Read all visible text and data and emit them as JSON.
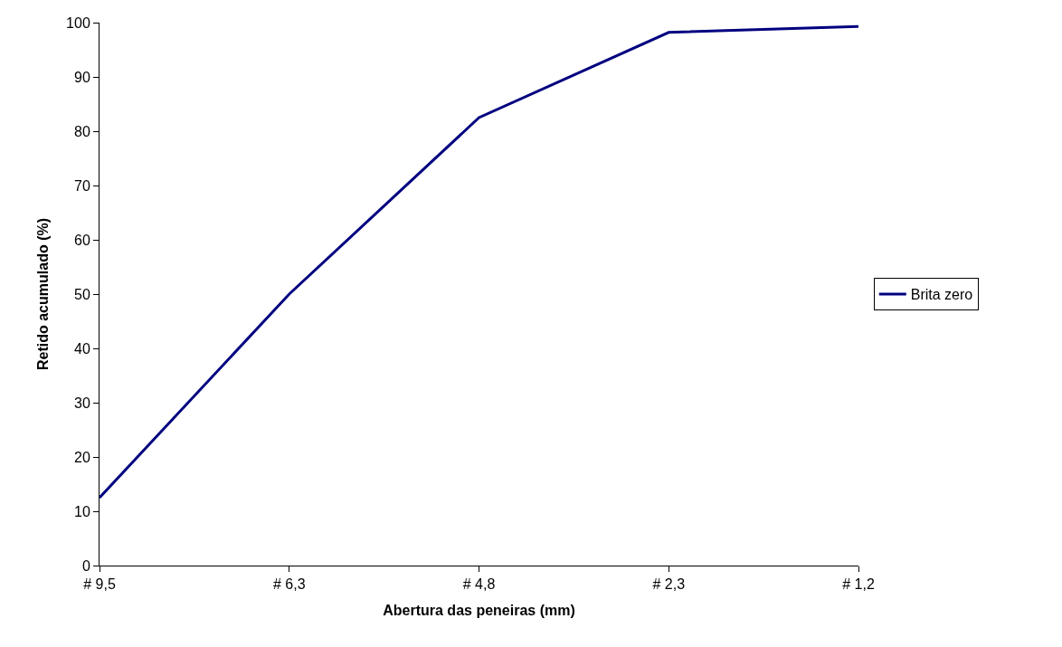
{
  "chart_data": {
    "type": "line",
    "xlabel": "Abertura das peneiras (mm)",
    "ylabel": "Retido acumulado (%)",
    "categories": [
      "# 9,5",
      "# 6,3",
      "# 4,8",
      "# 2,3",
      "# 1,2"
    ],
    "series": [
      {
        "name": "Brita zero",
        "color": "#000080",
        "values": [
          12.5,
          50,
          82.5,
          98.2,
          99.3
        ]
      }
    ],
    "ylim": [
      0,
      100
    ],
    "yticks": [
      0,
      10,
      20,
      30,
      40,
      50,
      60,
      70,
      80,
      90,
      100
    ],
    "grid": false,
    "legend": "right",
    "marker": "none",
    "line_style": "solid"
  }
}
